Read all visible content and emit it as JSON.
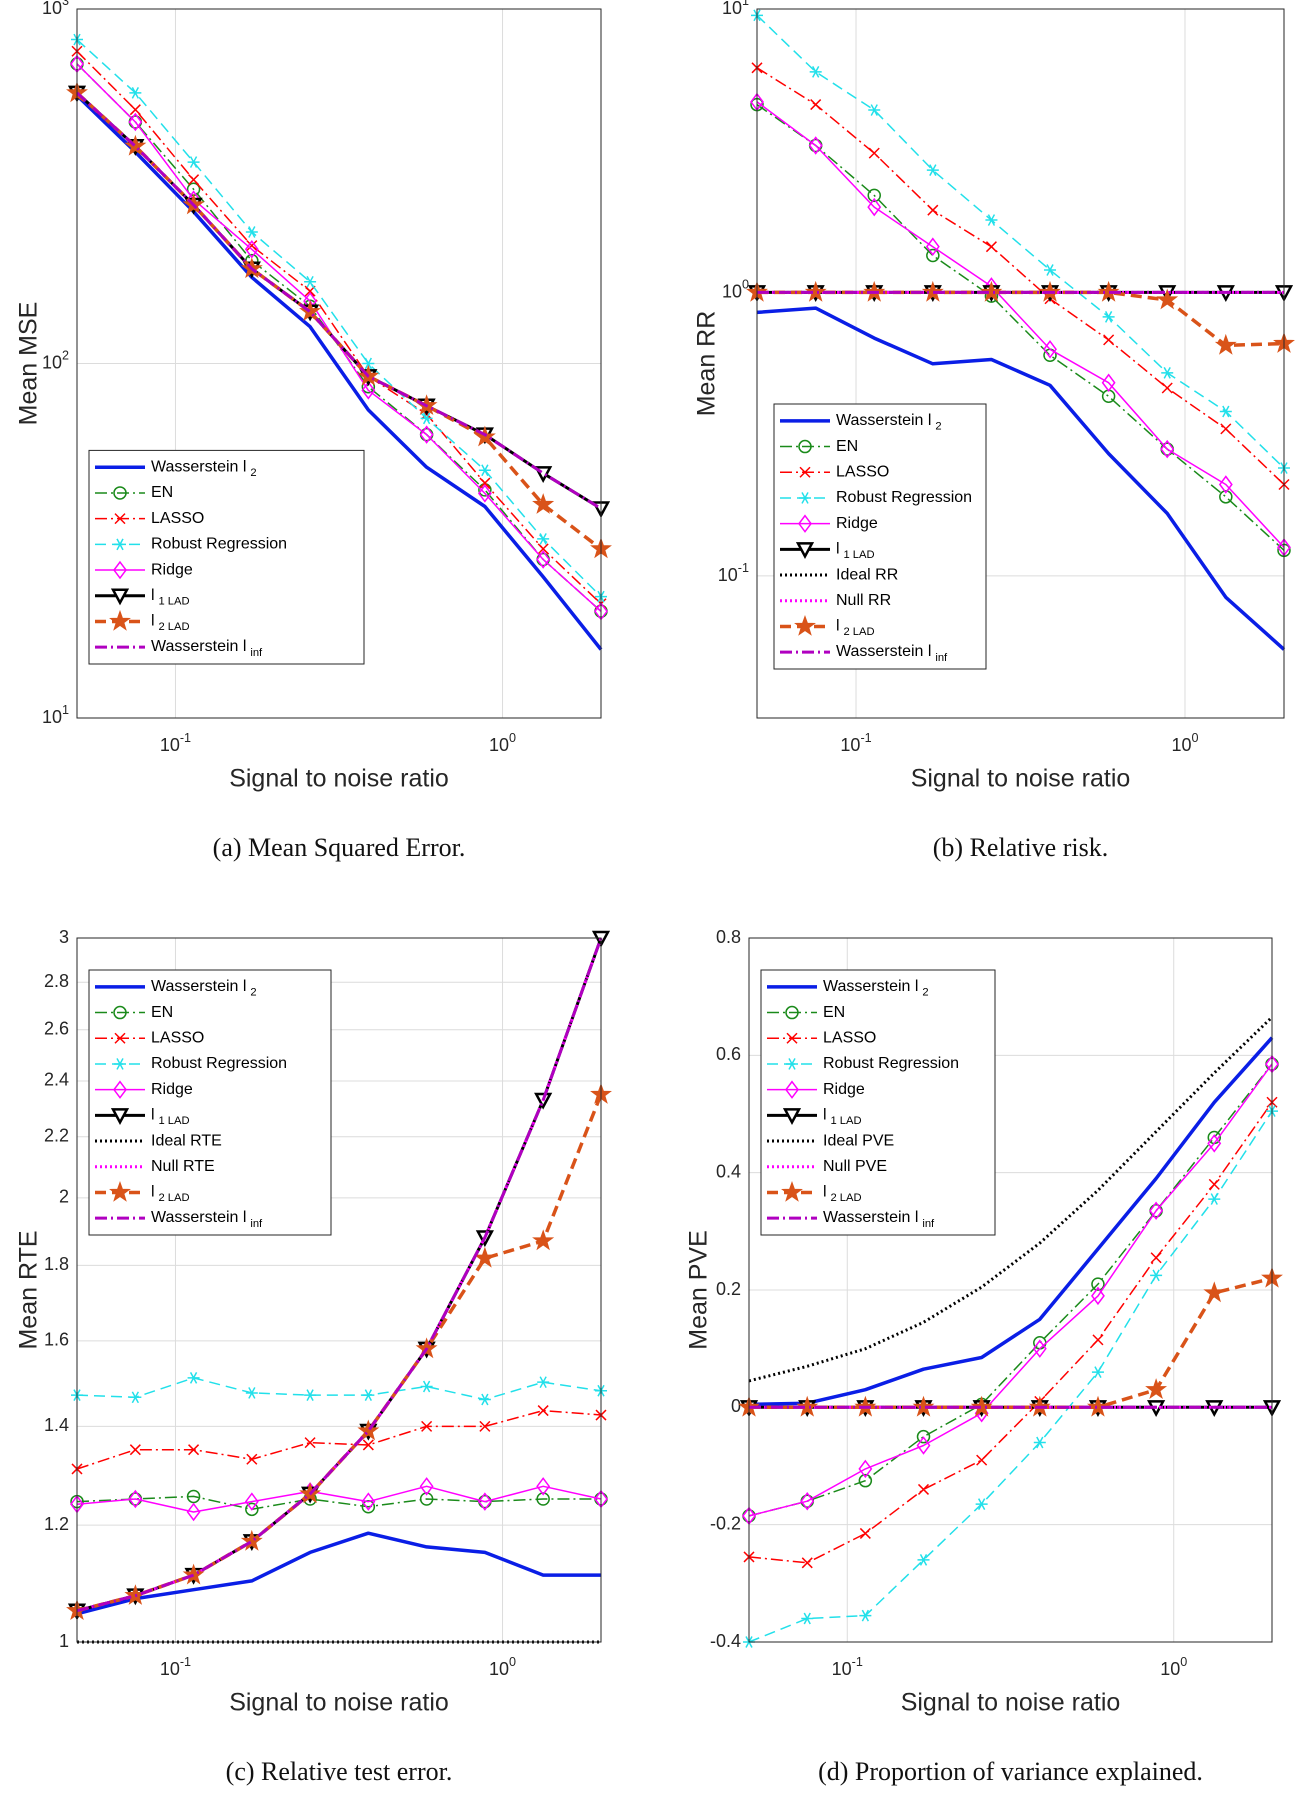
{
  "chart_data": [
    {
      "type": "line",
      "xlabel": "Signal to noise ratio",
      "ylabel": "Mean MSE",
      "caption": "(a) Mean Squared Error.",
      "xscale": "log",
      "yscale": "log",
      "grid": true,
      "legend": "lower left",
      "x": [
        0.05,
        0.0754,
        0.1136,
        0.1712,
        0.258,
        0.3888,
        0.586,
        0.8831,
        1.331,
        2
      ],
      "xlim": [
        0.05,
        2
      ],
      "xticks": [
        {
          "value": 0.1,
          "label": "10^-1"
        },
        {
          "value": 1,
          "label": "10^0"
        }
      ],
      "ylim": [
        10,
        1000
      ],
      "yticks": [
        {
          "value": 10,
          "label": "10^1"
        },
        {
          "value": 100,
          "label": "10^2"
        },
        {
          "value": 1000,
          "label": "10^3"
        }
      ],
      "series": [
        {
          "name": "Wasserstein l_2",
          "color": "#0a1ee6",
          "dash": "solid",
          "width": 3.5,
          "marker": "none",
          "values": [
            570,
            395,
            268,
            175,
            127,
            74,
            51,
            39.5,
            25,
            15.6
          ]
        },
        {
          "name": "EN",
          "color": "#1a8a1a",
          "dash": "dashdot",
          "width": 1.5,
          "marker": "circle",
          "values": [
            700,
            480,
            310,
            195,
            145,
            86,
            63,
            44,
            28,
            20
          ]
        },
        {
          "name": "LASSO",
          "color": "#ff0000",
          "dash": "dashdot",
          "width": 1.5,
          "marker": "x",
          "values": [
            760,
            520,
            330,
            215,
            160,
            92,
            72,
            46,
            30,
            21
          ]
        },
        {
          "name": "Robust Regression",
          "color": "#22e0ea",
          "dash": "dashed",
          "width": 1.5,
          "marker": "asterisk",
          "values": [
            820,
            580,
            370,
            235,
            170,
            100,
            70,
            50,
            32,
            22
          ]
        },
        {
          "name": "Ridge",
          "color": "#ff00ff",
          "dash": "solid",
          "width": 1.5,
          "marker": "diamond",
          "values": [
            700,
            480,
            290,
            210,
            150,
            84,
            63,
            43,
            28,
            20
          ]
        },
        {
          "name": "l_1 LAD",
          "color": "#000000",
          "dash": "solid",
          "width": 3,
          "marker": "triangle-down",
          "values": [
            580,
            410,
            280,
            185,
            140,
            92,
            76,
            63,
            49,
            39
          ]
        },
        {
          "name": "l_2 LAD",
          "color": "#d95319",
          "dash": "dashed",
          "width": 3.5,
          "marker": "star",
          "values": [
            580,
            410,
            280,
            185,
            140,
            92,
            76,
            62,
            40,
            30
          ]
        },
        {
          "name": "Wasserstein l_inf",
          "color": "#b000c0",
          "dash": "dashdot",
          "width": 3,
          "marker": "none",
          "values": [
            580,
            410,
            280,
            185,
            140,
            92,
            76,
            63,
            49,
            39
          ]
        }
      ]
    },
    {
      "type": "line",
      "xlabel": "Signal to noise ratio",
      "ylabel": "Mean RR",
      "caption": "(b) Relative risk.",
      "xscale": "log",
      "yscale": "log",
      "grid": true,
      "legend": "lower left",
      "x": [
        0.05,
        0.0754,
        0.1136,
        0.1712,
        0.258,
        0.3888,
        0.586,
        0.8831,
        1.331,
        2
      ],
      "xlim": [
        0.05,
        2
      ],
      "xticks": [
        {
          "value": 0.1,
          "label": "10^-1"
        },
        {
          "value": 1,
          "label": "10^0"
        }
      ],
      "ylim": [
        0.0315,
        10
      ],
      "yticks": [
        {
          "value": 0.1,
          "label": "10^-1"
        },
        {
          "value": 1,
          "label": "10^0"
        },
        {
          "value": 10,
          "label": "10^1"
        }
      ],
      "series": [
        {
          "name": "Wasserstein l_2",
          "color": "#0a1ee6",
          "dash": "solid",
          "width": 3.5,
          "marker": "none",
          "values": [
            0.85,
            0.88,
            0.69,
            0.56,
            0.58,
            0.47,
            0.27,
            0.166,
            0.084,
            0.055
          ]
        },
        {
          "name": "EN",
          "color": "#1a8a1a",
          "dash": "dashdot",
          "width": 1.5,
          "marker": "circle",
          "values": [
            4.6,
            3.3,
            2.2,
            1.35,
            0.97,
            0.6,
            0.43,
            0.28,
            0.19,
            0.123
          ]
        },
        {
          "name": "LASSO",
          "color": "#ff0000",
          "dash": "dashdot",
          "width": 1.5,
          "marker": "x",
          "values": [
            6.2,
            4.6,
            3.1,
            1.95,
            1.45,
            0.95,
            0.68,
            0.46,
            0.33,
            0.21
          ]
        },
        {
          "name": "Robust Regression",
          "color": "#22e0ea",
          "dash": "dashed",
          "width": 1.5,
          "marker": "asterisk",
          "values": [
            9.5,
            6,
            4.4,
            2.7,
            1.8,
            1.2,
            0.82,
            0.52,
            0.38,
            0.24
          ]
        },
        {
          "name": "Ridge",
          "color": "#ff00ff",
          "dash": "solid",
          "width": 1.5,
          "marker": "diamond",
          "values": [
            4.7,
            3.3,
            2,
            1.45,
            1.05,
            0.63,
            0.48,
            0.28,
            0.21,
            0.126
          ]
        },
        {
          "name": "l_1 LAD",
          "color": "#000000",
          "dash": "solid",
          "width": 3,
          "marker": "triangle-down",
          "values": [
            1,
            1,
            1,
            1,
            1,
            1,
            1,
            1,
            1,
            1
          ]
        },
        {
          "name": "Ideal RR",
          "color": "#000000",
          "dash": "dotted",
          "width": 3,
          "marker": "none",
          "values": [
            null,
            null,
            null,
            null,
            null,
            null,
            null,
            null,
            null,
            null
          ]
        },
        {
          "name": "Null RR",
          "color": "#ff00ff",
          "dash": "dotted",
          "width": 3,
          "marker": "none",
          "values": [
            1,
            1,
            1,
            1,
            1,
            1,
            1,
            1,
            1,
            1
          ]
        },
        {
          "name": "l_2 LAD",
          "color": "#d95319",
          "dash": "dashed",
          "width": 3.5,
          "marker": "star",
          "values": [
            1,
            1,
            1,
            1,
            1,
            1,
            1,
            0.94,
            0.65,
            0.66
          ]
        },
        {
          "name": "Wasserstein l_inf",
          "color": "#b000c0",
          "dash": "dashdot",
          "width": 3,
          "marker": "none",
          "values": [
            1,
            1,
            1,
            1,
            1,
            1,
            1,
            1,
            1,
            1
          ]
        }
      ]
    },
    {
      "type": "line",
      "xlabel": "Signal to noise ratio",
      "ylabel": "Mean RTE",
      "caption": "(c) Relative test error.",
      "xscale": "log",
      "yscale": "log",
      "grid": true,
      "legend": "upper left",
      "x": [
        0.05,
        0.0754,
        0.1136,
        0.1712,
        0.258,
        0.3888,
        0.586,
        0.8831,
        1.331,
        2
      ],
      "xlim": [
        0.05,
        2
      ],
      "xticks": [
        {
          "value": 0.1,
          "label": "10^-1"
        },
        {
          "value": 1,
          "label": "10^0"
        }
      ],
      "ylim": [
        1,
        3
      ],
      "yticks": [
        1,
        1.2,
        1.4,
        1.6,
        1.8,
        2,
        2.2,
        2.4,
        2.6,
        2.8,
        3
      ],
      "series": [
        {
          "name": "Wasserstein l_2",
          "color": "#0a1ee6",
          "dash": "solid",
          "width": 3.5,
          "marker": "none",
          "values": [
            1.045,
            1.07,
            1.085,
            1.1,
            1.15,
            1.185,
            1.16,
            1.15,
            1.11,
            1.11
          ]
        },
        {
          "name": "EN",
          "color": "#1a8a1a",
          "dash": "dashdot",
          "width": 1.5,
          "marker": "circle",
          "values": [
            1.245,
            1.25,
            1.255,
            1.23,
            1.25,
            1.235,
            1.25,
            1.245,
            1.25,
            1.25
          ]
        },
        {
          "name": "LASSO",
          "color": "#ff0000",
          "dash": "dashdot",
          "width": 1.5,
          "marker": "x",
          "values": [
            1.31,
            1.35,
            1.35,
            1.33,
            1.365,
            1.36,
            1.4,
            1.4,
            1.435,
            1.425
          ]
        },
        {
          "name": "Robust Regression",
          "color": "#22e0ea",
          "dash": "dashed",
          "width": 1.5,
          "marker": "asterisk",
          "values": [
            1.47,
            1.465,
            1.51,
            1.475,
            1.47,
            1.47,
            1.49,
            1.46,
            1.5,
            1.48
          ]
        },
        {
          "name": "Ridge",
          "color": "#ff00ff",
          "dash": "solid",
          "width": 1.5,
          "marker": "diamond",
          "values": [
            1.24,
            1.25,
            1.225,
            1.245,
            1.265,
            1.245,
            1.275,
            1.245,
            1.275,
            1.25
          ]
        },
        {
          "name": "l_1 LAD",
          "color": "#000000",
          "dash": "solid",
          "width": 3,
          "marker": "triangle-down",
          "values": [
            1.05,
            1.075,
            1.11,
            1.17,
            1.26,
            1.39,
            1.58,
            1.88,
            2.33,
            3
          ]
        },
        {
          "name": "Ideal RTE",
          "color": "#000000",
          "dash": "dotted",
          "width": 3,
          "marker": "none",
          "values": [
            1,
            1,
            1,
            1,
            1,
            1,
            1,
            1,
            1,
            1
          ]
        },
        {
          "name": "Null RTE",
          "color": "#ff00ff",
          "dash": "dotted",
          "width": 3,
          "marker": "none",
          "values": [
            1.05,
            1.075,
            1.11,
            1.17,
            1.26,
            1.39,
            1.58,
            1.88,
            2.33,
            3
          ]
        },
        {
          "name": "l_2 LAD",
          "color": "#d95319",
          "dash": "dashed",
          "width": 3.5,
          "marker": "star",
          "values": [
            1.05,
            1.075,
            1.11,
            1.17,
            1.26,
            1.39,
            1.58,
            1.82,
            1.87,
            2.35
          ]
        },
        {
          "name": "Wasserstein l_inf",
          "color": "#b000c0",
          "dash": "dashdot",
          "width": 3,
          "marker": "none",
          "values": [
            1.05,
            1.075,
            1.11,
            1.17,
            1.26,
            1.39,
            1.58,
            1.88,
            2.33,
            3
          ]
        }
      ]
    },
    {
      "type": "line",
      "xlabel": "Signal to noise ratio",
      "ylabel": "Mean PVE",
      "caption": "(d) Proportion of variance explained.",
      "xscale": "log",
      "yscale": "linear",
      "grid": true,
      "legend": "upper left",
      "x": [
        0.05,
        0.0754,
        0.1136,
        0.1712,
        0.258,
        0.3888,
        0.586,
        0.8831,
        1.331,
        2
      ],
      "xlim": [
        0.05,
        2
      ],
      "xticks": [
        {
          "value": 0.1,
          "label": "10^-1"
        },
        {
          "value": 1,
          "label": "10^0"
        }
      ],
      "ylim": [
        -0.4,
        0.8
      ],
      "yticks": [
        -0.4,
        -0.2,
        0,
        0.2,
        0.4,
        0.6,
        0.8
      ],
      "series": [
        {
          "name": "Wasserstein l_2",
          "color": "#0a1ee6",
          "dash": "solid",
          "width": 3.5,
          "marker": "none",
          "values": [
            0.005,
            0.007,
            0.03,
            0.065,
            0.085,
            0.15,
            0.27,
            0.39,
            0.52,
            0.63
          ]
        },
        {
          "name": "EN",
          "color": "#1a8a1a",
          "dash": "dashdot",
          "width": 1.5,
          "marker": "circle",
          "values": [
            -0.185,
            -0.16,
            -0.125,
            -0.05,
            0.005,
            0.11,
            0.21,
            0.335,
            0.46,
            0.585
          ]
        },
        {
          "name": "LASSO",
          "color": "#ff0000",
          "dash": "dashdot",
          "width": 1.5,
          "marker": "x",
          "values": [
            -0.255,
            -0.265,
            -0.215,
            -0.14,
            -0.09,
            0.01,
            0.115,
            0.255,
            0.38,
            0.52
          ]
        },
        {
          "name": "Robust Regression",
          "color": "#22e0ea",
          "dash": "dashed",
          "width": 1.5,
          "marker": "asterisk",
          "values": [
            -0.4,
            -0.36,
            -0.355,
            -0.26,
            -0.165,
            -0.06,
            0.06,
            0.225,
            0.355,
            0.505
          ]
        },
        {
          "name": "Ridge",
          "color": "#ff00ff",
          "dash": "solid",
          "width": 1.5,
          "marker": "diamond",
          "values": [
            -0.185,
            -0.16,
            -0.105,
            -0.065,
            -0.01,
            0.1,
            0.19,
            0.335,
            0.45,
            0.585
          ]
        },
        {
          "name": "l_1 LAD",
          "color": "#000000",
          "dash": "solid",
          "width": 3,
          "marker": "triangle-down",
          "values": [
            0,
            0,
            0,
            0,
            0,
            0,
            0,
            0,
            0,
            0
          ]
        },
        {
          "name": "Ideal PVE",
          "color": "#000000",
          "dash": "dotted",
          "width": 3,
          "marker": "none",
          "values": [
            0.045,
            0.07,
            0.1,
            0.145,
            0.205,
            0.28,
            0.37,
            0.47,
            0.57,
            0.665
          ]
        },
        {
          "name": "Null PVE",
          "color": "#ff00ff",
          "dash": "dotted",
          "width": 3,
          "marker": "none",
          "values": [
            0,
            0,
            0,
            0,
            0,
            0,
            0,
            0,
            0,
            0
          ]
        },
        {
          "name": "l_2 LAD",
          "color": "#d95319",
          "dash": "dashed",
          "width": 3.5,
          "marker": "star",
          "values": [
            0,
            0,
            0,
            0,
            0,
            0,
            0,
            0.03,
            0.195,
            0.22
          ]
        },
        {
          "name": "Wasserstein l_inf",
          "color": "#b000c0",
          "dash": "dashdot",
          "width": 3,
          "marker": "none",
          "values": [
            0,
            0,
            0,
            0,
            0,
            0,
            0,
            0,
            0,
            0
          ]
        }
      ]
    }
  ]
}
